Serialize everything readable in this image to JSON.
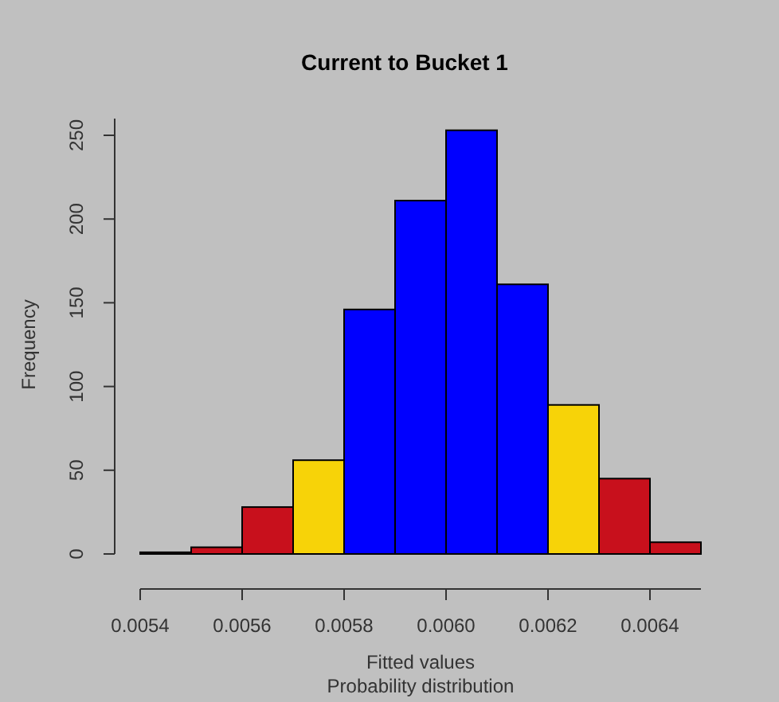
{
  "chart_data": {
    "type": "histogram",
    "title": "Current to Bucket 1",
    "subtitle": "Probability distribution",
    "xlabel": "Fitted values",
    "ylabel": "Frequency",
    "bins": [
      0.0054,
      0.0055,
      0.0056,
      0.0057,
      0.0058,
      0.0059,
      0.006,
      0.0061,
      0.0062,
      0.0063,
      0.0064,
      0.0065
    ],
    "values": [
      1,
      4,
      28,
      56,
      146,
      211,
      253,
      161,
      89,
      45,
      7
    ],
    "colors": [
      "#c8101c",
      "#c8101c",
      "#c8101c",
      "#f7d308",
      "#0000ff",
      "#0000ff",
      "#0000ff",
      "#0000ff",
      "#f7d308",
      "#c8101c",
      "#c8101c"
    ],
    "xlim": [
      0.0054,
      0.0065
    ],
    "ylim": [
      0,
      260
    ],
    "xticks": [
      {
        "value": 0.0054,
        "label": "0.0054"
      },
      {
        "value": 0.0056,
        "label": "0.0056"
      },
      {
        "value": 0.0058,
        "label": "0.0058"
      },
      {
        "value": 0.006,
        "label": "0.0060"
      },
      {
        "value": 0.0062,
        "label": "0.0062"
      },
      {
        "value": 0.0064,
        "label": "0.0064"
      }
    ],
    "yticks": [
      0,
      50,
      100,
      150,
      200,
      250
    ],
    "grid": false
  }
}
